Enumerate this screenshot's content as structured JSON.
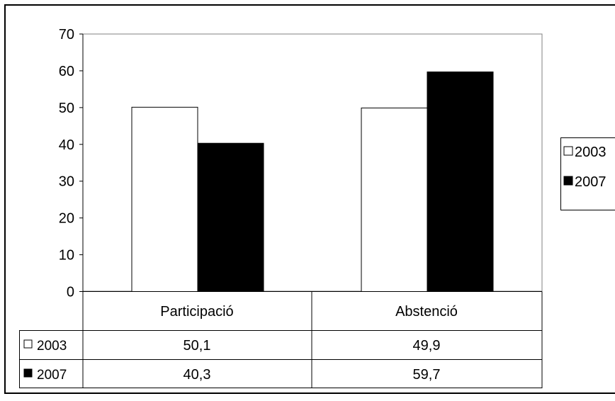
{
  "chart_data": {
    "type": "bar",
    "categories": [
      "Participació",
      "Abstenció"
    ],
    "series": [
      {
        "name": "2003",
        "values": [
          50.1,
          49.9
        ],
        "color": "#ffffff"
      },
      {
        "name": "2007",
        "values": [
          40.3,
          59.7
        ],
        "color": "#000000"
      }
    ],
    "ylim": [
      0,
      70
    ],
    "yticks": [
      0,
      10,
      20,
      30,
      40,
      50,
      60,
      70
    ],
    "grid": false,
    "legend": "right",
    "data_table": {
      "rows": [
        {
          "label": "2003",
          "cells": [
            "50,1",
            "49,9"
          ]
        },
        {
          "label": "2007",
          "cells": [
            "40,3",
            "59,7"
          ]
        }
      ]
    }
  }
}
